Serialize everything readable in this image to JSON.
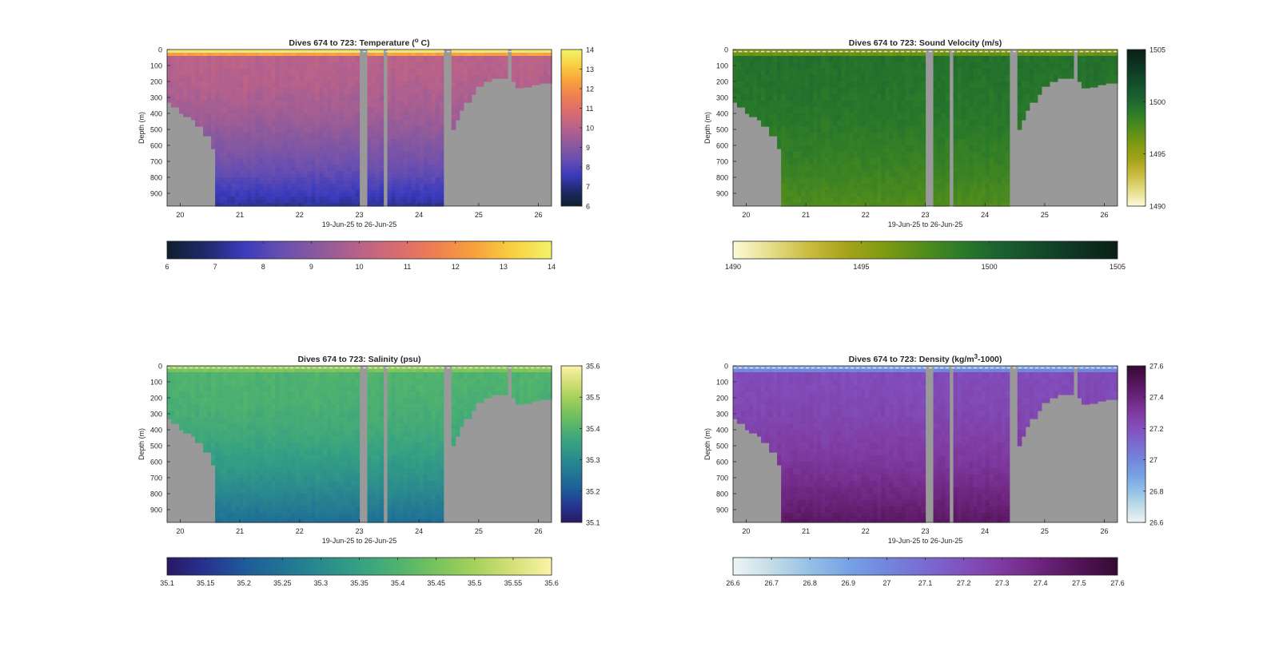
{
  "figure": {
    "background": "#ffffff"
  },
  "chart_data": [
    {
      "type": "heatmap",
      "title": "Dives 674 to 723: Temperature (",
      "title_sup": "o",
      "title_tail": " C)",
      "xlabel": "19-Jun-25 to 26-Jun-25",
      "ylabel": "Depth (m)",
      "xticks": [
        "20",
        "21",
        "22",
        "23",
        "24",
        "25",
        "26"
      ],
      "xlim": [
        19.78,
        26.22
      ],
      "yticks": [
        "0",
        "100",
        "200",
        "300",
        "400",
        "500",
        "600",
        "700",
        "800",
        "900"
      ],
      "ylim": [
        0,
        980
      ],
      "clim": [
        6,
        14
      ],
      "colorbar_ticks": [
        "6",
        "7",
        "8",
        "9",
        "10",
        "11",
        "12",
        "13",
        "14"
      ],
      "hcolorbar_ticks": [
        "6",
        "7",
        "8",
        "9",
        "10",
        "11",
        "12",
        "13",
        "14"
      ],
      "colormap": [
        "#0d1f2d",
        "#1f2a6c",
        "#3b3bbd",
        "#6a4fb0",
        "#8e5a9c",
        "#b9628a",
        "#d96c70",
        "#ef7f52",
        "#f8a23c",
        "#f8d042",
        "#f2f36a"
      ],
      "bottom_value": 7.2,
      "mid_value": 10.0,
      "top_value": 13.0,
      "no_data": "#999999"
    },
    {
      "type": "heatmap",
      "title": "Dives 674 to 723: Sound Velocity (m/s)",
      "xlabel": "19-Jun-25 to 26-Jun-25",
      "ylabel": "Depth (m)",
      "xticks": [
        "20",
        "21",
        "22",
        "23",
        "24",
        "25",
        "26"
      ],
      "xlim": [
        19.78,
        26.22
      ],
      "yticks": [
        "0",
        "100",
        "200",
        "300",
        "400",
        "500",
        "600",
        "700",
        "800",
        "900"
      ],
      "ylim": [
        0,
        980
      ],
      "clim": [
        1490,
        1505
      ],
      "colorbar_ticks": [
        "1490",
        "1495",
        "1500",
        "1505"
      ],
      "hcolorbar_ticks": [
        "1490",
        "1495",
        "1500",
        "1505"
      ],
      "colormap": [
        "#fdfbd6",
        "#e4dc88",
        "#c9bb3e",
        "#a4a21a",
        "#7c9a12",
        "#4f8c1c",
        "#2a7a2a",
        "#1a6030",
        "#134a2a",
        "#0e3322",
        "#0b1f16"
      ],
      "bottom_value": 1497.5,
      "mid_value": 1499.5,
      "top_value": 1496.0,
      "no_data": "#999999"
    },
    {
      "type": "heatmap",
      "title": "Dives 674 to 723: Salinity (psu)",
      "xlabel": "19-Jun-25 to 26-Jun-25",
      "ylabel": "Depth (m)",
      "xticks": [
        "20",
        "21",
        "22",
        "23",
        "24",
        "25",
        "26"
      ],
      "xlim": [
        19.78,
        26.22
      ],
      "yticks": [
        "0",
        "100",
        "200",
        "300",
        "400",
        "500",
        "600",
        "700",
        "800",
        "900"
      ],
      "ylim": [
        0,
        980
      ],
      "clim": [
        35.1,
        35.6
      ],
      "colorbar_ticks": [
        "35.1",
        "35.2",
        "35.3",
        "35.4",
        "35.5",
        "35.6"
      ],
      "hcolorbar_ticks": [
        "35.1",
        "35.15",
        "35.2",
        "35.25",
        "35.3",
        "35.35",
        "35.4",
        "35.45",
        "35.5",
        "35.55",
        "35.6"
      ],
      "colormap": [
        "#2a1864",
        "#26338f",
        "#1f5a98",
        "#217394",
        "#2a8a8e",
        "#36a083",
        "#4fb26f",
        "#78c25d",
        "#a6d15c",
        "#d4e07a",
        "#fcf3a8"
      ],
      "bottom_value": 35.24,
      "mid_value": 35.4,
      "top_value": 35.47,
      "no_data": "#999999"
    },
    {
      "type": "heatmap",
      "title": "Dives 674 to 723: Density (kg/m",
      "title_sup": "3",
      "title_tail": "-1000)",
      "xlabel": "19-Jun-25 to 26-Jun-25",
      "ylabel": "Depth (m)",
      "xticks": [
        "20",
        "21",
        "22",
        "23",
        "24",
        "25",
        "26"
      ],
      "xlim": [
        19.78,
        26.22
      ],
      "yticks": [
        "0",
        "100",
        "200",
        "300",
        "400",
        "500",
        "600",
        "700",
        "800",
        "900"
      ],
      "ylim": [
        0,
        980
      ],
      "clim": [
        26.6,
        27.6
      ],
      "colorbar_ticks": [
        "26.6",
        "26.8",
        "27",
        "27.2",
        "27.4",
        "27.6"
      ],
      "hcolorbar_ticks": [
        "26.6",
        "26.7",
        "26.8",
        "26.9",
        "27",
        "27.1",
        "27.2",
        "27.3",
        "27.4",
        "27.5",
        "27.6"
      ],
      "colormap": [
        "#eef4f6",
        "#c2dde8",
        "#94c0e6",
        "#77a2e4",
        "#7286dc",
        "#7a6ad0",
        "#8250bd",
        "#7f3aa0",
        "#6c247c",
        "#521457",
        "#350a33"
      ],
      "bottom_value": 27.47,
      "mid_value": 27.22,
      "top_value": 26.95,
      "no_data": "#999999"
    }
  ],
  "seafloor_profile": {
    "note_units": "x in days (June 2025), depth in m",
    "points": [
      [
        19.78,
        330
      ],
      [
        19.88,
        360
      ],
      [
        19.98,
        400
      ],
      [
        20.08,
        420
      ],
      [
        20.2,
        440
      ],
      [
        20.28,
        480
      ],
      [
        20.4,
        540
      ],
      [
        20.52,
        620
      ],
      [
        20.58,
        980
      ],
      [
        24.42,
        980
      ],
      [
        24.45,
        520
      ],
      [
        24.52,
        500
      ],
      [
        24.58,
        440
      ],
      [
        24.66,
        380
      ],
      [
        24.75,
        330
      ],
      [
        24.85,
        280
      ],
      [
        24.95,
        230
      ],
      [
        25.05,
        200
      ],
      [
        25.2,
        180
      ],
      [
        25.45,
        175
      ],
      [
        25.58,
        200
      ],
      [
        25.6,
        240
      ],
      [
        25.75,
        235
      ],
      [
        25.9,
        220
      ],
      [
        26.05,
        210
      ],
      [
        26.22,
        190
      ]
    ],
    "gaps": [
      [
        23.0,
        23.12
      ],
      [
        23.38,
        23.5
      ],
      [
        24.42,
        24.53
      ],
      [
        25.45,
        25.58
      ]
    ]
  }
}
